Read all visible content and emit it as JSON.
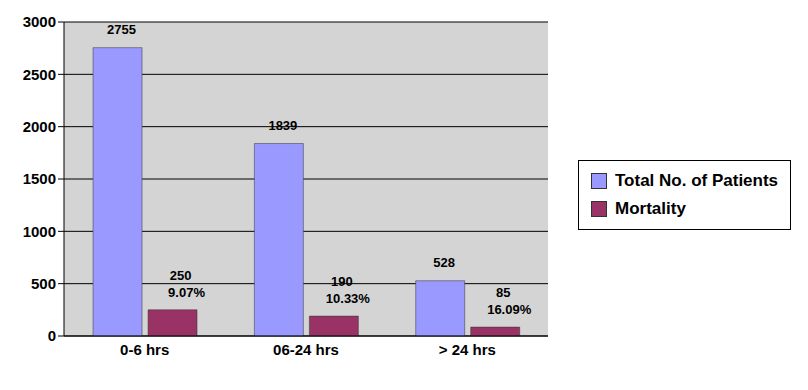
{
  "chart_data": {
    "type": "bar",
    "categories": [
      "0-6 hrs",
      "06-24 hrs",
      "> 24 hrs"
    ],
    "series": [
      {
        "name": "Total No. of Patients",
        "color": "#9999ff",
        "values": [
          2755,
          1839,
          528
        ]
      },
      {
        "name": "Mortality",
        "color": "#993366",
        "values": [
          250,
          190,
          85
        ],
        "annotations": [
          "9.07%",
          "10.33%",
          "16.09%"
        ]
      }
    ],
    "ylim": [
      0,
      3000
    ],
    "yticks": [
      0,
      500,
      1000,
      1500,
      2000,
      2500,
      3000
    ],
    "grid": true,
    "legend": "right",
    "data_labels": true
  }
}
